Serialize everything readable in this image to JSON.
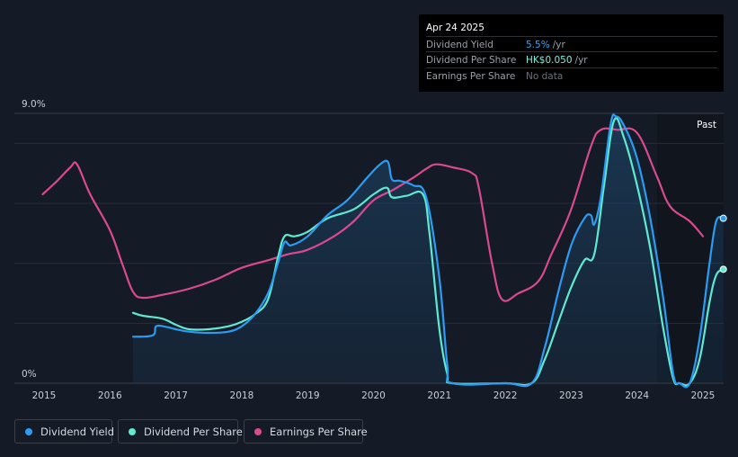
{
  "tooltip": {
    "date": "Apr 24 2025",
    "rows": [
      {
        "label": "Dividend Yield",
        "value": "5.5%",
        "unit": "/yr",
        "color": "#3fa4ef"
      },
      {
        "label": "Dividend Per Share",
        "value": "HK$0.050",
        "unit": "/yr",
        "color": "#7cf2dc"
      },
      {
        "label": "Earnings Per Share",
        "value": "No data",
        "unit": "",
        "color": "#6b7079"
      }
    ]
  },
  "legend": [
    {
      "label": "Dividend Yield",
      "color": "#2d9bf0"
    },
    {
      "label": "Dividend Per Share",
      "color": "#5fe9d0"
    },
    {
      "label": "Earnings Per Share",
      "color": "#d9498f"
    }
  ],
  "chart_data": {
    "type": "line",
    "title": "",
    "xlabel": "",
    "ylabel": "",
    "x_ticks": [
      "2015",
      "2016",
      "2017",
      "2018",
      "2019",
      "2020",
      "2021",
      "2022",
      "2023",
      "2024",
      "2025"
    ],
    "y_tick_labels": [
      "0%",
      "9.0%"
    ],
    "ylim": [
      0,
      9.0
    ],
    "past_label": "Past",
    "grid": true,
    "legend_position": "bottom-left",
    "series": [
      {
        "name": "Dividend Yield",
        "color": "#2d9bf0",
        "points": [
          [
            2016.35,
            1.55
          ],
          [
            2016.65,
            1.6
          ],
          [
            2016.7,
            1.9
          ],
          [
            2016.85,
            1.88
          ],
          [
            2017.0,
            1.8
          ],
          [
            2017.2,
            1.72
          ],
          [
            2017.5,
            1.68
          ],
          [
            2017.8,
            1.72
          ],
          [
            2018.0,
            1.9
          ],
          [
            2018.2,
            2.3
          ],
          [
            2018.4,
            3.0
          ],
          [
            2018.55,
            4.0
          ],
          [
            2018.65,
            4.7
          ],
          [
            2018.75,
            4.6
          ],
          [
            2019.0,
            4.9
          ],
          [
            2019.3,
            5.6
          ],
          [
            2019.6,
            6.1
          ],
          [
            2019.9,
            6.85
          ],
          [
            2020.1,
            7.3
          ],
          [
            2020.22,
            7.38
          ],
          [
            2020.28,
            6.8
          ],
          [
            2020.4,
            6.75
          ],
          [
            2020.6,
            6.6
          ],
          [
            2020.8,
            6.2
          ],
          [
            2021.0,
            3.5
          ],
          [
            2021.12,
            0.6
          ],
          [
            2021.2,
            0
          ],
          [
            2022.0,
            0
          ],
          [
            2022.4,
            0
          ],
          [
            2022.6,
            1.2
          ],
          [
            2022.8,
            3.0
          ],
          [
            2023.0,
            4.6
          ],
          [
            2023.2,
            5.5
          ],
          [
            2023.3,
            5.6
          ],
          [
            2023.35,
            5.3
          ],
          [
            2023.45,
            6.2
          ],
          [
            2023.6,
            8.65
          ],
          [
            2023.68,
            8.9
          ],
          [
            2023.8,
            8.6
          ],
          [
            2024.0,
            7.5
          ],
          [
            2024.2,
            5.5
          ],
          [
            2024.4,
            2.8
          ],
          [
            2024.55,
            0.3
          ],
          [
            2024.65,
            0
          ],
          [
            2024.8,
            0
          ],
          [
            2024.95,
            1.5
          ],
          [
            2025.1,
            4.0
          ],
          [
            2025.2,
            5.4
          ],
          [
            2025.31,
            5.5
          ]
        ]
      },
      {
        "name": "Dividend Per Share",
        "color": "#5fe9d0",
        "points": [
          [
            2016.35,
            2.35
          ],
          [
            2016.5,
            2.25
          ],
          [
            2016.8,
            2.15
          ],
          [
            2017.0,
            1.95
          ],
          [
            2017.2,
            1.8
          ],
          [
            2017.5,
            1.8
          ],
          [
            2017.8,
            1.9
          ],
          [
            2018.0,
            2.05
          ],
          [
            2018.2,
            2.3
          ],
          [
            2018.4,
            2.8
          ],
          [
            2018.55,
            4.2
          ],
          [
            2018.65,
            4.9
          ],
          [
            2018.8,
            4.9
          ],
          [
            2019.0,
            5.05
          ],
          [
            2019.3,
            5.5
          ],
          [
            2019.7,
            5.8
          ],
          [
            2020.0,
            6.3
          ],
          [
            2020.2,
            6.52
          ],
          [
            2020.28,
            6.2
          ],
          [
            2020.5,
            6.25
          ],
          [
            2020.75,
            6.3
          ],
          [
            2020.85,
            5.0
          ],
          [
            2021.0,
            1.8
          ],
          [
            2021.12,
            0.3
          ],
          [
            2021.2,
            0
          ],
          [
            2022.0,
            0
          ],
          [
            2022.4,
            0
          ],
          [
            2022.6,
            0.8
          ],
          [
            2022.8,
            2.0
          ],
          [
            2023.0,
            3.2
          ],
          [
            2023.2,
            4.1
          ],
          [
            2023.35,
            4.3
          ],
          [
            2023.5,
            6.6
          ],
          [
            2023.65,
            8.75
          ],
          [
            2023.8,
            8.2
          ],
          [
            2024.0,
            6.6
          ],
          [
            2024.2,
            4.5
          ],
          [
            2024.4,
            1.8
          ],
          [
            2024.55,
            0.15
          ],
          [
            2024.65,
            0
          ],
          [
            2024.8,
            0
          ],
          [
            2024.95,
            0.8
          ],
          [
            2025.1,
            2.7
          ],
          [
            2025.2,
            3.6
          ],
          [
            2025.31,
            3.8
          ]
        ]
      },
      {
        "name": "Earnings Per Share",
        "color": "#d9498f",
        "points": [
          [
            2014.98,
            6.3
          ],
          [
            2015.2,
            6.75
          ],
          [
            2015.4,
            7.2
          ],
          [
            2015.5,
            7.3
          ],
          [
            2015.7,
            6.3
          ],
          [
            2016.0,
            5.1
          ],
          [
            2016.2,
            3.9
          ],
          [
            2016.35,
            3.05
          ],
          [
            2016.5,
            2.85
          ],
          [
            2016.8,
            2.95
          ],
          [
            2017.2,
            3.15
          ],
          [
            2017.6,
            3.45
          ],
          [
            2018.0,
            3.85
          ],
          [
            2018.4,
            4.1
          ],
          [
            2018.7,
            4.3
          ],
          [
            2019.0,
            4.45
          ],
          [
            2019.4,
            4.9
          ],
          [
            2019.7,
            5.4
          ],
          [
            2020.0,
            6.1
          ],
          [
            2020.3,
            6.45
          ],
          [
            2020.6,
            6.85
          ],
          [
            2020.8,
            7.15
          ],
          [
            2020.95,
            7.3
          ],
          [
            2021.2,
            7.2
          ],
          [
            2021.5,
            7.0
          ],
          [
            2021.6,
            6.5
          ],
          [
            2021.8,
            4.0
          ],
          [
            2021.95,
            2.8
          ],
          [
            2022.2,
            3.0
          ],
          [
            2022.5,
            3.4
          ],
          [
            2022.7,
            4.3
          ],
          [
            2023.0,
            5.8
          ],
          [
            2023.3,
            7.9
          ],
          [
            2023.45,
            8.45
          ],
          [
            2023.7,
            8.45
          ],
          [
            2024.0,
            8.35
          ],
          [
            2024.3,
            6.9
          ],
          [
            2024.5,
            5.9
          ],
          [
            2024.8,
            5.4
          ],
          [
            2025.0,
            4.9
          ]
        ]
      }
    ]
  }
}
